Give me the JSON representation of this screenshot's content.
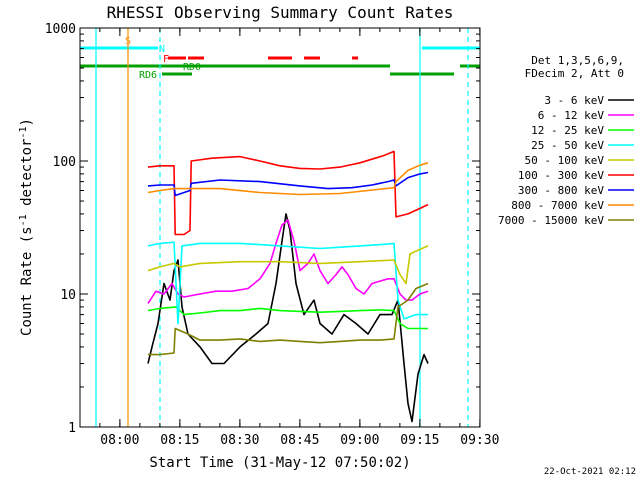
{
  "chart_data": {
    "type": "line",
    "title": "RHESSI Observing Summary Count Rates",
    "xlabel": "Start Time (31-May-12 07:50:02)",
    "ylabel_main": "Count Rate (s",
    "ylabel_sup1": "-1",
    "ylabel_mid": " detector",
    "ylabel_sup2": "-1",
    "ylabel_end": ")",
    "footer": "22-Oct-2021 02:12",
    "x_unit": "minutes since 07:50:02",
    "xlim": [
      0,
      100
    ],
    "ylim": [
      1,
      1000
    ],
    "yscale": "log",
    "y_ticks": [
      {
        "value": 1,
        "label": "1"
      },
      {
        "value": 10,
        "label": "10"
      },
      {
        "value": 100,
        "label": "100"
      },
      {
        "value": 1000,
        "label": "1000"
      }
    ],
    "x_ticks": [
      {
        "value": 9.97,
        "label": "08:00"
      },
      {
        "value": 24.97,
        "label": "08:15"
      },
      {
        "value": 39.97,
        "label": "08:30"
      },
      {
        "value": 54.97,
        "label": "08:45"
      },
      {
        "value": 69.97,
        "label": "09:00"
      },
      {
        "value": 84.97,
        "label": "09:15"
      },
      {
        "value": 99.97,
        "label": "09:30"
      }
    ],
    "legend_header": [
      "Det 1,3,5,6,9,",
      "FDecim 2, Att 0"
    ],
    "legend_position": "right",
    "series": [
      {
        "name": "3 - 6 keV",
        "color": "#000000",
        "points": [
          [
            17.0,
            3.0
          ],
          [
            18.0,
            4.0
          ],
          [
            19.5,
            6.0
          ],
          [
            21.0,
            12.0
          ],
          [
            22.5,
            9.0
          ],
          [
            23.5,
            15.0
          ],
          [
            24.5,
            18.0
          ],
          [
            25.5,
            8.0
          ],
          [
            27.0,
            5.0
          ],
          [
            30.0,
            4.0
          ],
          [
            33.0,
            3.0
          ],
          [
            36.0,
            3.0
          ],
          [
            40.0,
            4.0
          ],
          [
            44.0,
            5.0
          ],
          [
            47.0,
            6.0
          ],
          [
            49.0,
            12.0
          ],
          [
            50.5,
            25.0
          ],
          [
            51.5,
            40.0
          ],
          [
            52.5,
            30.0
          ],
          [
            54.0,
            12.0
          ],
          [
            56.0,
            7.0
          ],
          [
            58.5,
            9.0
          ],
          [
            60.0,
            6.0
          ],
          [
            63.0,
            5.0
          ],
          [
            66.0,
            7.0
          ],
          [
            69.0,
            6.0
          ],
          [
            72.0,
            5.0
          ],
          [
            75.0,
            7.0
          ],
          [
            78.0,
            7.0
          ],
          [
            79.5,
            9.0
          ],
          [
            81.0,
            3.0
          ],
          [
            82.0,
            1.5
          ],
          [
            83.0,
            1.1
          ],
          [
            84.5,
            2.5
          ],
          [
            86.0,
            3.5
          ],
          [
            87.0,
            3.0
          ]
        ]
      },
      {
        "name": "6 - 12 keV",
        "color": "#ff00ff",
        "points": [
          [
            17.0,
            8.5
          ],
          [
            19.0,
            10.5
          ],
          [
            21.0,
            10.0
          ],
          [
            23.0,
            12.0
          ],
          [
            24.5,
            10.0
          ],
          [
            26.0,
            9.5
          ],
          [
            30.0,
            10.0
          ],
          [
            34.0,
            10.5
          ],
          [
            38.0,
            10.5
          ],
          [
            42.0,
            11.0
          ],
          [
            45.0,
            13.0
          ],
          [
            47.5,
            17.0
          ],
          [
            49.0,
            24.0
          ],
          [
            50.5,
            33.0
          ],
          [
            52.0,
            36.0
          ],
          [
            53.5,
            25.0
          ],
          [
            55.0,
            15.0
          ],
          [
            57.0,
            17.0
          ],
          [
            58.5,
            20.0
          ],
          [
            60.0,
            15.0
          ],
          [
            62.0,
            12.0
          ],
          [
            64.0,
            14.0
          ],
          [
            65.5,
            16.0
          ],
          [
            67.0,
            14.0
          ],
          [
            69.0,
            11.0
          ],
          [
            71.0,
            10.0
          ],
          [
            73.0,
            12.0
          ],
          [
            75.0,
            12.5
          ],
          [
            77.0,
            13.0
          ],
          [
            78.5,
            13.0
          ],
          [
            80.0,
            10.0
          ],
          [
            81.5,
            9.0
          ],
          [
            83.0,
            9.0
          ],
          [
            85.0,
            10.0
          ],
          [
            87.0,
            10.5
          ]
        ]
      },
      {
        "name": "12 - 25 keV",
        "color": "#00ff00",
        "points": [
          [
            17.0,
            7.5
          ],
          [
            20.0,
            7.8
          ],
          [
            24.0,
            8.0
          ],
          [
            26.0,
            7.0
          ],
          [
            30.0,
            7.2
          ],
          [
            35.0,
            7.5
          ],
          [
            40.0,
            7.5
          ],
          [
            45.0,
            7.8
          ],
          [
            50.0,
            7.5
          ],
          [
            55.0,
            7.4
          ],
          [
            60.0,
            7.3
          ],
          [
            65.0,
            7.4
          ],
          [
            70.0,
            7.5
          ],
          [
            75.0,
            7.6
          ],
          [
            78.5,
            7.5
          ],
          [
            80.0,
            6.0
          ],
          [
            82.0,
            5.5
          ],
          [
            85.0,
            5.5
          ],
          [
            87.0,
            5.5
          ]
        ]
      },
      {
        "name": "25 - 50 keV",
        "color": "#00ffff",
        "points": [
          [
            17.0,
            23.0
          ],
          [
            20.0,
            24.0
          ],
          [
            23.5,
            24.5
          ],
          [
            24.5,
            6.0
          ],
          [
            25.5,
            23.0
          ],
          [
            30.0,
            24.0
          ],
          [
            35.0,
            24.0
          ],
          [
            40.0,
            24.0
          ],
          [
            45.0,
            23.5
          ],
          [
            50.0,
            23.0
          ],
          [
            55.0,
            22.5
          ],
          [
            60.0,
            22.0
          ],
          [
            65.0,
            22.5
          ],
          [
            70.0,
            23.0
          ],
          [
            75.0,
            23.5
          ],
          [
            78.5,
            24.0
          ],
          [
            79.5,
            9.0
          ],
          [
            81.0,
            6.5
          ],
          [
            84.0,
            7.0
          ],
          [
            87.0,
            7.0
          ]
        ]
      },
      {
        "name": "50 - 100 keV",
        "color": "#c8c800",
        "points": [
          [
            17.0,
            15.0
          ],
          [
            20.0,
            16.0
          ],
          [
            23.5,
            17.0
          ],
          [
            25.0,
            16.0
          ],
          [
            30.0,
            17.0
          ],
          [
            40.0,
            17.5
          ],
          [
            50.0,
            17.5
          ],
          [
            60.0,
            17.0
          ],
          [
            70.0,
            17.5
          ],
          [
            78.5,
            18.0
          ],
          [
            80.0,
            14.0
          ],
          [
            81.5,
            12.0
          ],
          [
            82.5,
            20.0
          ],
          [
            84.0,
            21.0
          ],
          [
            87.0,
            23.0
          ]
        ]
      },
      {
        "name": "100 - 300 keV",
        "color": "#ff0000",
        "points": [
          [
            17.0,
            90.0
          ],
          [
            20.0,
            92.0
          ],
          [
            23.5,
            92.0
          ],
          [
            23.8,
            28.0
          ],
          [
            26.0,
            28.0
          ],
          [
            27.5,
            30.0
          ],
          [
            27.8,
            100.0
          ],
          [
            33.0,
            105.0
          ],
          [
            40.0,
            108.0
          ],
          [
            45.0,
            100.0
          ],
          [
            50.0,
            92.0
          ],
          [
            55.0,
            88.0
          ],
          [
            60.0,
            87.0
          ],
          [
            65.0,
            90.0
          ],
          [
            70.0,
            97.0
          ],
          [
            76.0,
            110.0
          ],
          [
            78.5,
            118.0
          ],
          [
            79.0,
            38.0
          ],
          [
            82.0,
            40.0
          ],
          [
            85.0,
            44.0
          ],
          [
            87.0,
            47.0
          ]
        ]
      },
      {
        "name": "300 - 800 keV",
        "color": "#0000ff",
        "points": [
          [
            17.0,
            65.0
          ],
          [
            20.0,
            66.0
          ],
          [
            23.5,
            66.0
          ],
          [
            23.8,
            55.0
          ],
          [
            27.5,
            60.0
          ],
          [
            27.8,
            68.0
          ],
          [
            35.0,
            72.0
          ],
          [
            45.0,
            70.0
          ],
          [
            55.0,
            65.0
          ],
          [
            62.0,
            62.0
          ],
          [
            68.0,
            63.0
          ],
          [
            73.0,
            66.0
          ],
          [
            77.0,
            70.0
          ],
          [
            78.5,
            72.0
          ],
          [
            79.0,
            65.0
          ],
          [
            82.0,
            75.0
          ],
          [
            85.0,
            80.0
          ],
          [
            87.0,
            82.0
          ]
        ]
      },
      {
        "name": "800 - 7000 keV",
        "color": "#ff8c00",
        "points": [
          [
            17.0,
            58.0
          ],
          [
            20.0,
            60.0
          ],
          [
            23.5,
            62.0
          ],
          [
            27.5,
            62.0
          ],
          [
            35.0,
            62.0
          ],
          [
            45.0,
            58.0
          ],
          [
            55.0,
            56.0
          ],
          [
            65.0,
            57.0
          ],
          [
            72.0,
            60.0
          ],
          [
            78.5,
            63.0
          ],
          [
            79.0,
            70.0
          ],
          [
            82.0,
            85.0
          ],
          [
            85.0,
            93.0
          ],
          [
            87.0,
            97.0
          ]
        ]
      },
      {
        "name": "7000 - 15000 keV",
        "color": "#808000",
        "points": [
          [
            17.0,
            3.5
          ],
          [
            20.0,
            3.5
          ],
          [
            23.5,
            3.6
          ],
          [
            23.8,
            5.5
          ],
          [
            27.0,
            5.0
          ],
          [
            30.0,
            4.5
          ],
          [
            35.0,
            4.5
          ],
          [
            40.0,
            4.6
          ],
          [
            45.0,
            4.4
          ],
          [
            50.0,
            4.5
          ],
          [
            55.0,
            4.4
          ],
          [
            60.0,
            4.3
          ],
          [
            65.0,
            4.4
          ],
          [
            70.0,
            4.5
          ],
          [
            75.0,
            4.5
          ],
          [
            78.5,
            4.6
          ],
          [
            79.5,
            8.0
          ],
          [
            82.0,
            9.0
          ],
          [
            84.0,
            11.0
          ],
          [
            87.0,
            12.0
          ]
        ]
      }
    ],
    "vertical_lines": [
      {
        "x": 4.0,
        "color": "#00ffff",
        "dashed": false
      },
      {
        "x": 12.0,
        "color": "#ff8c00",
        "dashed": false
      },
      {
        "x": 20.0,
        "color": "#00ffff",
        "dashed": true
      },
      {
        "x": 85.0,
        "color": "#00ffff",
        "dashed": false
      },
      {
        "x": 97.0,
        "color": "#00ffff",
        "dashed": true
      }
    ],
    "flags": [
      {
        "label": "S",
        "color": "#ff8c00",
        "label_x": 12.0,
        "y": 40,
        "segments": []
      },
      {
        "label": "N",
        "color": "#00ffff",
        "label_x": 20.5,
        "y": 48,
        "segments": [
          [
            0,
            19.5
          ],
          [
            85.5,
            100
          ]
        ]
      },
      {
        "label": "F",
        "color": "#ff0000",
        "label_x": 21.5,
        "y": 58,
        "segments": [
          [
            22.0,
            26.5
          ],
          [
            27.0,
            31.0
          ],
          [
            47.0,
            53.0
          ],
          [
            56.0,
            60.0
          ],
          [
            68.0,
            69.5
          ]
        ]
      },
      {
        "label": "RD0",
        "color": "#00a000",
        "label_x": 28.0,
        "y": 66,
        "segments": [
          [
            0,
            77.5
          ],
          [
            95.0,
            100
          ]
        ]
      },
      {
        "label": "RD6",
        "color": "#00a000",
        "label_x": 17.0,
        "y": 74,
        "segments": [
          [
            20.5,
            28.0
          ],
          [
            77.5,
            93.5
          ]
        ]
      }
    ]
  }
}
